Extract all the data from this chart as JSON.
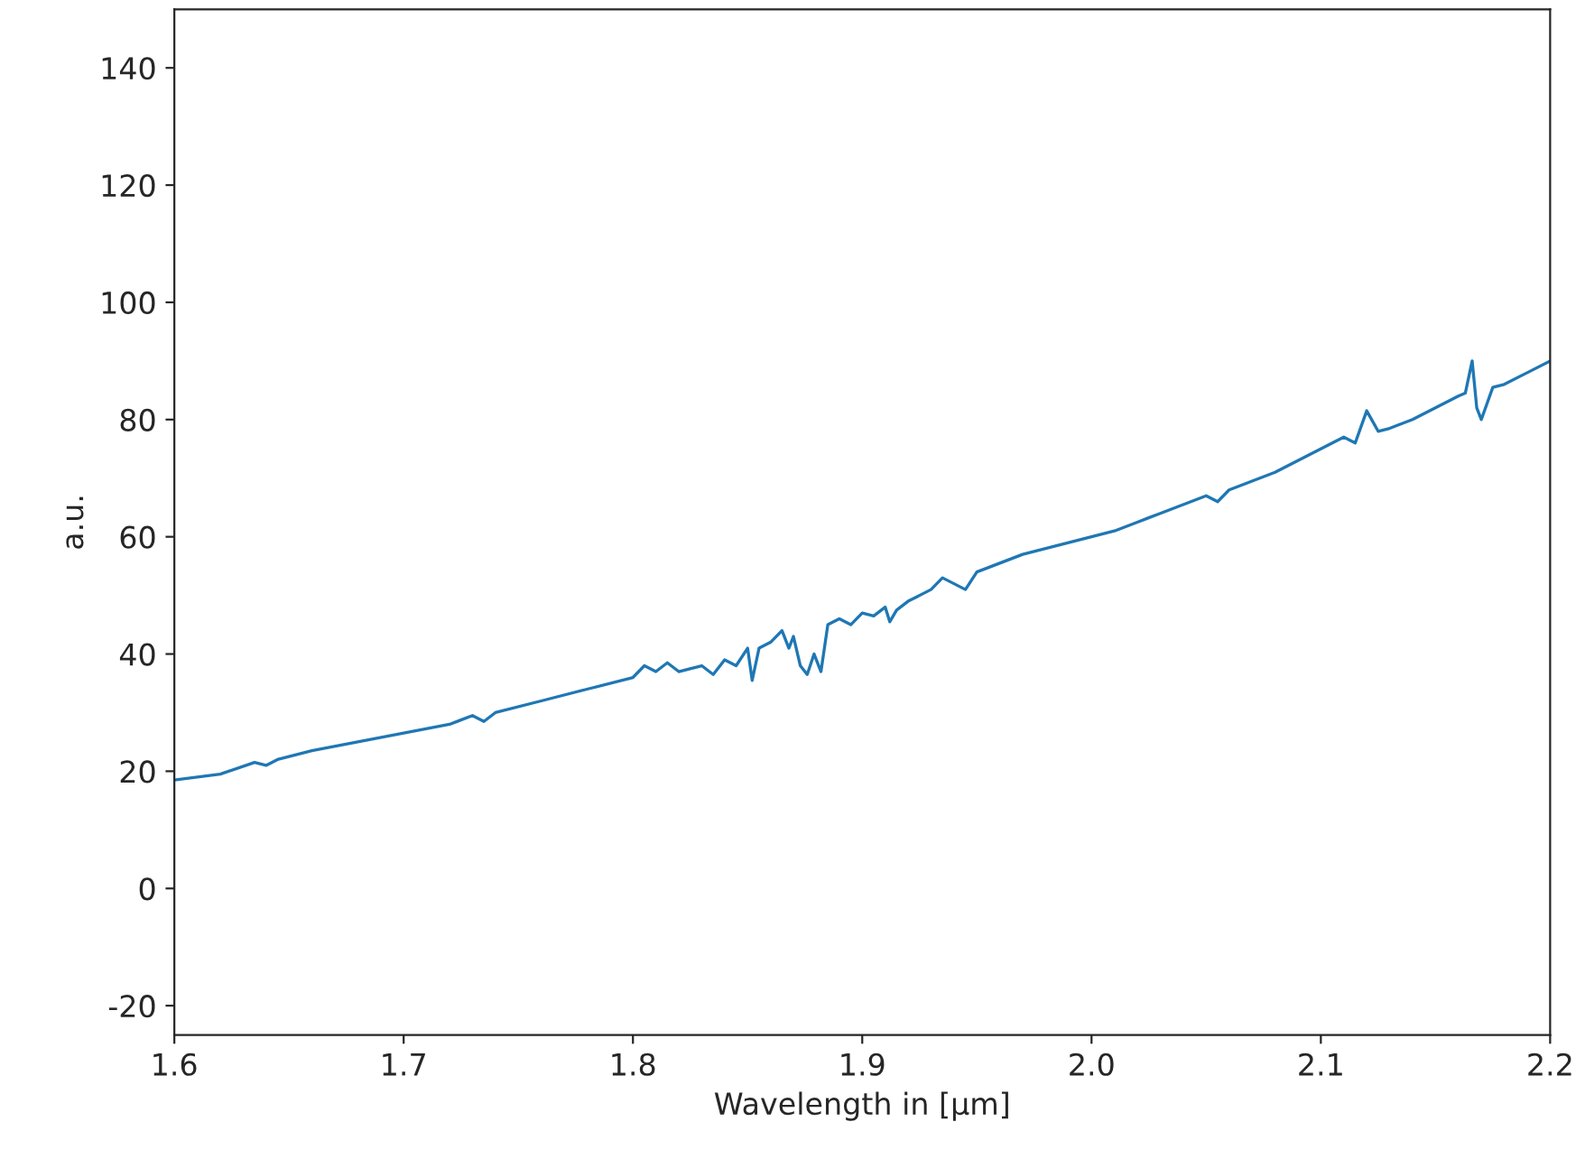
{
  "chart_data": {
    "type": "line",
    "xlabel": "Wavelength in [µm]",
    "ylabel": "a.u.",
    "x": [
      1.6,
      1.62,
      1.635,
      1.64,
      1.645,
      1.66,
      1.68,
      1.7,
      1.72,
      1.73,
      1.735,
      1.74,
      1.76,
      1.78,
      1.8,
      1.805,
      1.81,
      1.815,
      1.82,
      1.83,
      1.835,
      1.84,
      1.845,
      1.85,
      1.852,
      1.855,
      1.86,
      1.865,
      1.868,
      1.87,
      1.873,
      1.876,
      1.879,
      1.882,
      1.885,
      1.89,
      1.895,
      1.9,
      1.905,
      1.91,
      1.912,
      1.915,
      1.92,
      1.925,
      1.93,
      1.935,
      1.94,
      1.945,
      1.95,
      1.96,
      1.97,
      1.98,
      1.99,
      2.0,
      2.01,
      2.02,
      2.03,
      2.04,
      2.05,
      2.055,
      2.06,
      2.07,
      2.08,
      2.09,
      2.1,
      2.11,
      2.115,
      2.12,
      2.125,
      2.13,
      2.14,
      2.15,
      2.16,
      2.163,
      2.166,
      2.168,
      2.17,
      2.175,
      2.18,
      2.19,
      2.2
    ],
    "series": [
      {
        "color": "#1f77b4",
        "values": [
          18.5,
          19.5,
          21.5,
          21,
          22,
          23.5,
          25,
          26.5,
          28,
          29.5,
          28.5,
          30,
          32,
          34,
          36,
          38,
          37,
          38.5,
          37,
          38,
          36.5,
          39,
          38,
          41,
          35.5,
          41,
          42,
          44,
          41,
          43,
          38,
          36.5,
          40,
          37,
          45,
          46,
          45,
          47,
          46.5,
          48,
          45.5,
          47.5,
          49,
          50,
          51,
          53,
          52,
          51,
          54,
          55.5,
          57,
          58,
          59,
          60,
          61,
          62.5,
          64,
          65.5,
          67,
          66,
          68,
          69.5,
          71,
          73,
          75,
          77,
          76,
          81.5,
          78,
          78.5,
          80,
          82,
          84,
          84.5,
          90,
          82,
          80,
          85.5,
          86,
          88,
          90
        ]
      }
    ],
    "xlim": [
      1.6,
      2.2
    ],
    "ylim": [
      -25,
      150
    ],
    "xticks": [
      1.6,
      1.7,
      1.8,
      1.9,
      {
        "value": 2.0,
        "label": "2.0"
      },
      2.1,
      2.2
    ],
    "yticks": [
      -20,
      0,
      20,
      40,
      60,
      80,
      100,
      120,
      140
    ]
  }
}
